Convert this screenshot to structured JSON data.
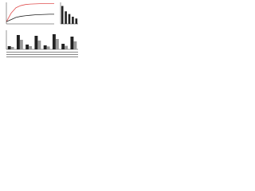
{
  "chart_data": [
    {
      "type": "line",
      "x": [
        0,
        1,
        2,
        3,
        4,
        5,
        6,
        7,
        8,
        9,
        10
      ],
      "xlim": [
        0,
        10
      ],
      "ylim": [
        0,
        1
      ],
      "series": [
        {
          "color": "#e05050",
          "values": [
            0.1,
            0.5,
            0.75,
            0.85,
            0.9,
            0.92,
            0.93,
            0.94,
            0.95,
            0.95,
            0.95
          ]
        },
        {
          "color": "#222222",
          "values": [
            0.1,
            0.2,
            0.3,
            0.35,
            0.38,
            0.4,
            0.42,
            0.43,
            0.44,
            0.45,
            0.45
          ]
        }
      ]
    },
    {
      "type": "bar",
      "categories": [
        null,
        null,
        null,
        null,
        null
      ],
      "values": [
        100,
        70,
        55,
        40,
        30
      ],
      "ylim": [
        0,
        120
      ],
      "color": "#222222"
    },
    {
      "type": "grouped-bar",
      "categories": [
        null,
        null,
        null,
        null,
        null,
        null,
        null,
        null
      ],
      "ylim": [
        0,
        120
      ],
      "series": [
        {
          "color": "#222222",
          "values": [
            20,
            90,
            30,
            85,
            25,
            95,
            35,
            80
          ]
        },
        {
          "color": "#999999",
          "values": [
            15,
            60,
            20,
            55,
            18,
            65,
            22,
            50
          ]
        }
      ]
    }
  ]
}
